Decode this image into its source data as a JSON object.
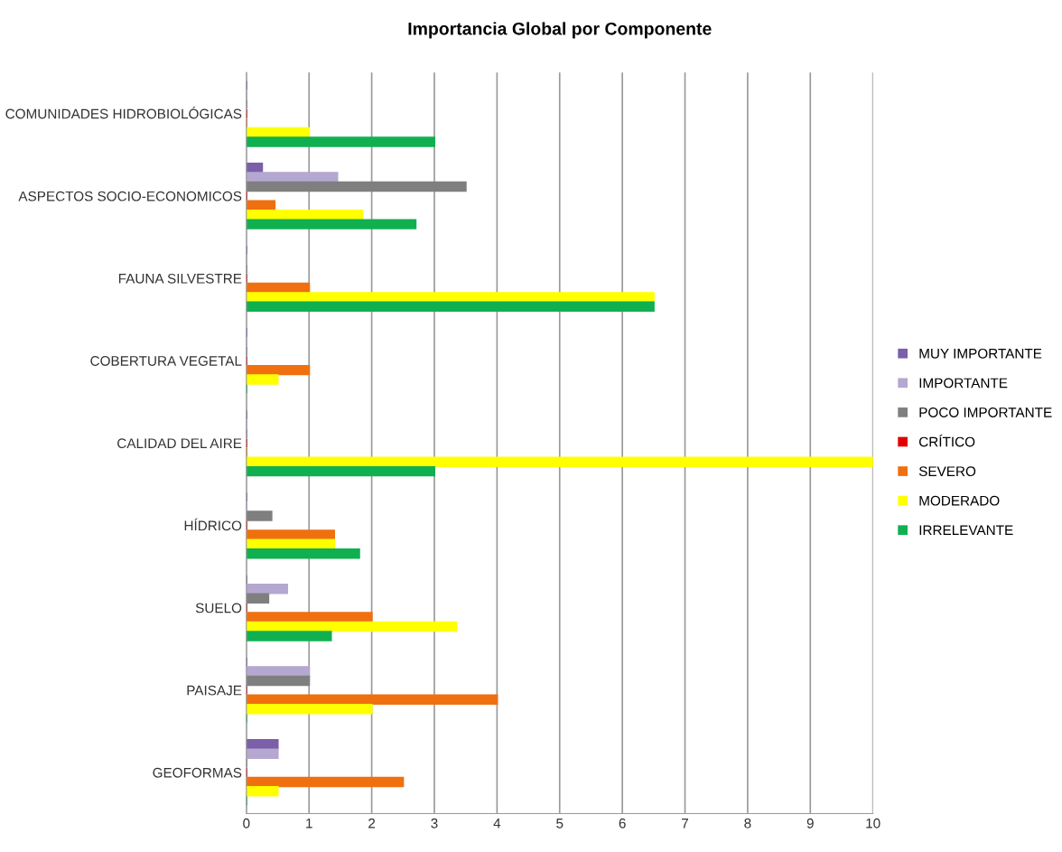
{
  "chart_data": {
    "type": "bar",
    "orientation": "horizontal",
    "title": "Importancia Global por Componente",
    "categories": [
      "COMUNIDADES HIDROBIOLÓGICAS",
      "ASPECTOS SOCIO-ECONOMICOS",
      "FAUNA SILVESTRE",
      "COBERTURA VEGETAL",
      "CALIDAD DEL AIRE",
      "HÍDRICO",
      "SUELO",
      "PAISAJE",
      "GEOFORMAS"
    ],
    "series": [
      {
        "name": "MUY IMPORTANTE",
        "color": "#7b5fa8",
        "values": [
          0,
          0.25,
          0,
          0,
          0,
          0,
          0,
          0,
          0.5
        ]
      },
      {
        "name": "IMPORTANTE",
        "color": "#b4a7d0",
        "values": [
          0,
          1.45,
          0,
          0,
          0,
          0,
          0.65,
          1,
          0.5
        ]
      },
      {
        "name": "POCO IMPORTANTE",
        "color": "#7f7f7f",
        "values": [
          0,
          3.5,
          0,
          0,
          0,
          0.4,
          0.35,
          1,
          0
        ]
      },
      {
        "name": "CRÍTICO",
        "color": "#e00000",
        "values": [
          0,
          0,
          0,
          0,
          0,
          0,
          0,
          0,
          0
        ]
      },
      {
        "name": "SEVERO",
        "color": "#f07010",
        "values": [
          0,
          0.45,
          1,
          1,
          0,
          1.4,
          2,
          4,
          2.5
        ]
      },
      {
        "name": "MODERADO",
        "color": "#ffff00",
        "values": [
          1,
          1.85,
          6.5,
          0.5,
          10,
          1.4,
          3.35,
          2,
          0.5
        ]
      },
      {
        "name": "IRRELEVANTE",
        "color": "#10b050",
        "values": [
          3,
          2.7,
          6.5,
          0,
          3,
          1.8,
          1.35,
          0,
          0
        ]
      }
    ],
    "xlim": [
      0,
      10
    ],
    "xticks": [
      0,
      1,
      2,
      3,
      4,
      5,
      6,
      7,
      8,
      9,
      10
    ],
    "grid": "x",
    "legend": "right"
  }
}
